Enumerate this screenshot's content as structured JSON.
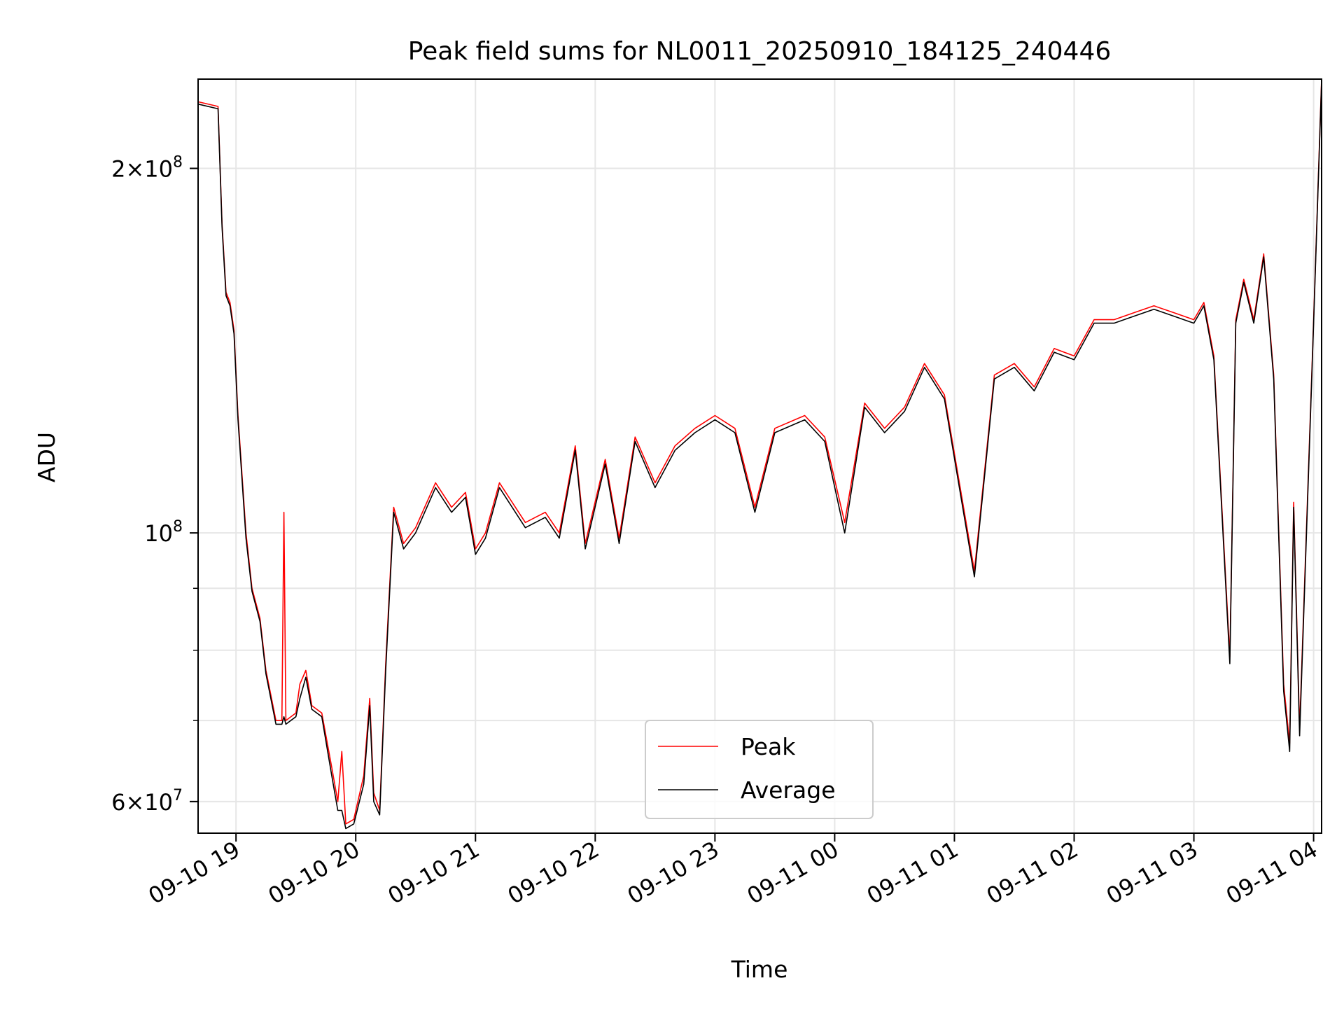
{
  "chart_data": {
    "type": "line",
    "title": "Peak field sums for NL0011_20250910_184125_240446",
    "xlabel": "Time",
    "ylabel": "ADU",
    "yscale": "log",
    "grid": true,
    "legend_position": "lower center",
    "xlim": [
      "2025-09-10 18:41",
      "2025-09-11 04:04"
    ],
    "ylim": [
      56500000,
      237000000
    ],
    "x_ticks": [
      "2025-09-10 19:00",
      "2025-09-10 20:00",
      "2025-09-10 21:00",
      "2025-09-10 22:00",
      "2025-09-10 23:00",
      "2025-09-11 00:00",
      "2025-09-11 01:00",
      "2025-09-11 02:00",
      "2025-09-11 03:00",
      "2025-09-11 04:00"
    ],
    "x_tick_labels": [
      "09-10 19",
      "09-10 20",
      "09-10 21",
      "09-10 22",
      "09-10 23",
      "09-11 00",
      "09-11 01",
      "09-11 02",
      "09-11 03",
      "09-11 04"
    ],
    "y_major_ticks": [
      60000000,
      100000000,
      200000000
    ],
    "y_tick_labels": [
      {
        "value": 60000000,
        "mantissa": "6",
        "exponent": "7"
      },
      {
        "value": 100000000,
        "mantissa": "",
        "exponent": "8"
      },
      {
        "value": 200000000,
        "mantissa": "2",
        "exponent": "8"
      }
    ],
    "y_minor_ticks": [
      70000000,
      80000000,
      90000000
    ],
    "series": [
      {
        "name": "Peak",
        "color": "#ff0000",
        "points": [
          [
            "2025-09-10 18:41",
            227000000.0
          ],
          [
            "2025-09-10 18:51",
            225000000.0
          ],
          [
            "2025-09-10 18:53",
            180000000.0
          ],
          [
            "2025-09-10 18:55",
            158000000.0
          ],
          [
            "2025-09-10 18:57",
            155000000.0
          ],
          [
            "2025-09-10 18:59",
            147000000.0
          ],
          [
            "2025-09-10 19:01",
            125000000.0
          ],
          [
            "2025-09-10 19:05",
            100000000.0
          ],
          [
            "2025-09-10 19:08",
            90000000.0
          ],
          [
            "2025-09-10 19:12",
            85000000.0
          ],
          [
            "2025-09-10 19:15",
            77000000.0
          ],
          [
            "2025-09-10 19:20",
            70000000.0
          ],
          [
            "2025-09-10 19:23",
            70000000.0
          ],
          [
            "2025-09-10 19:24",
            104000000.0
          ],
          [
            "2025-09-10 19:25",
            70000000.0
          ],
          [
            "2025-09-10 19:30",
            71000000.0
          ],
          [
            "2025-09-10 19:32",
            75000000.0
          ],
          [
            "2025-09-10 19:35",
            77000000.0
          ],
          [
            "2025-09-10 19:38",
            72000000.0
          ],
          [
            "2025-09-10 19:43",
            71000000.0
          ],
          [
            "2025-09-10 19:48",
            64000000.0
          ],
          [
            "2025-09-10 19:51",
            60000000.0
          ],
          [
            "2025-09-10 19:53",
            66000000.0
          ],
          [
            "2025-09-10 19:55",
            57500000.0
          ],
          [
            "2025-09-10 19:59",
            58000000.0
          ],
          [
            "2025-09-10 20:04",
            63000000.0
          ],
          [
            "2025-09-10 20:07",
            73000000.0
          ],
          [
            "2025-09-10 20:09",
            61000000.0
          ],
          [
            "2025-09-10 20:12",
            59000000.0
          ],
          [
            "2025-09-10 20:15",
            78000000.0
          ],
          [
            "2025-09-10 20:19",
            105000000.0
          ],
          [
            "2025-09-10 20:24",
            98000000.0
          ],
          [
            "2025-09-10 20:30",
            101000000.0
          ],
          [
            "2025-09-10 20:40",
            110000000.0
          ],
          [
            "2025-09-10 20:48",
            105000000.0
          ],
          [
            "2025-09-10 20:55",
            108000000.0
          ],
          [
            "2025-09-10 21:00",
            97000000.0
          ],
          [
            "2025-09-10 21:05",
            100000000.0
          ],
          [
            "2025-09-10 21:12",
            110000000.0
          ],
          [
            "2025-09-10 21:25",
            102000000.0
          ],
          [
            "2025-09-10 21:35",
            104000000.0
          ],
          [
            "2025-09-10 21:42",
            100000000.0
          ],
          [
            "2025-09-10 21:50",
            118000000.0
          ],
          [
            "2025-09-10 21:55",
            98000000.0
          ],
          [
            "2025-09-10 22:05",
            115000000.0
          ],
          [
            "2025-09-10 22:12",
            99000000.0
          ],
          [
            "2025-09-10 22:20",
            120000000.0
          ],
          [
            "2025-09-10 22:30",
            110000000.0
          ],
          [
            "2025-09-10 22:40",
            118000000.0
          ],
          [
            "2025-09-10 22:50",
            122000000.0
          ],
          [
            "2025-09-10 23:00",
            125000000.0
          ],
          [
            "2025-09-10 23:10",
            122000000.0
          ],
          [
            "2025-09-10 23:20",
            105000000.0
          ],
          [
            "2025-09-10 23:30",
            122000000.0
          ],
          [
            "2025-09-10 23:45",
            125000000.0
          ],
          [
            "2025-09-10 23:55",
            120000000.0
          ],
          [
            "2025-09-11 00:05",
            102000000.0
          ],
          [
            "2025-09-11 00:15",
            128000000.0
          ],
          [
            "2025-09-11 00:25",
            122000000.0
          ],
          [
            "2025-09-11 00:35",
            127000000.0
          ],
          [
            "2025-09-11 00:45",
            138000000.0
          ],
          [
            "2025-09-11 00:55",
            130000000.0
          ],
          [
            "2025-09-11 01:10",
            93000000.0
          ],
          [
            "2025-09-11 01:20",
            135000000.0
          ],
          [
            "2025-09-11 01:30",
            138000000.0
          ],
          [
            "2025-09-11 01:40",
            132000000.0
          ],
          [
            "2025-09-11 01:50",
            142000000.0
          ],
          [
            "2025-09-11 02:00",
            140000000.0
          ],
          [
            "2025-09-11 02:10",
            150000000.0
          ],
          [
            "2025-09-11 02:20",
            150000000.0
          ],
          [
            "2025-09-11 02:30",
            152000000.0
          ],
          [
            "2025-09-11 02:40",
            154000000.0
          ],
          [
            "2025-09-11 02:50",
            152000000.0
          ],
          [
            "2025-09-11 03:00",
            150000000.0
          ],
          [
            "2025-09-11 03:05",
            155000000.0
          ],
          [
            "2025-09-11 03:10",
            140000000.0
          ],
          [
            "2025-09-11 03:15",
            98000000.0
          ],
          [
            "2025-09-11 03:18",
            79000000.0
          ],
          [
            "2025-09-11 03:21",
            150000000.0
          ],
          [
            "2025-09-11 03:25",
            162000000.0
          ],
          [
            "2025-09-11 03:30",
            150000000.0
          ],
          [
            "2025-09-11 03:35",
            170000000.0
          ],
          [
            "2025-09-11 03:40",
            135000000.0
          ],
          [
            "2025-09-11 03:45",
            75000000.0
          ],
          [
            "2025-09-11 03:48",
            67000000.0
          ],
          [
            "2025-09-11 03:50",
            106000000.0
          ],
          [
            "2025-09-11 03:53",
            69000000.0
          ],
          [
            "2025-09-11 04:00",
            150000000.0
          ],
          [
            "2025-09-11 04:04",
            237000000.0
          ]
        ]
      },
      {
        "name": "Average",
        "color": "#000000",
        "points": [
          [
            "2025-09-10 18:41",
            226000000.0
          ],
          [
            "2025-09-10 18:51",
            224000000.0
          ],
          [
            "2025-09-10 18:53",
            179000000.0
          ],
          [
            "2025-09-10 18:55",
            157000000.0
          ],
          [
            "2025-09-10 18:57",
            154000000.0
          ],
          [
            "2025-09-10 18:59",
            146000000.0
          ],
          [
            "2025-09-10 19:01",
            124000000.0
          ],
          [
            "2025-09-10 19:05",
            99000000.0
          ],
          [
            "2025-09-10 19:08",
            89500000.0
          ],
          [
            "2025-09-10 19:12",
            84500000.0
          ],
          [
            "2025-09-10 19:15",
            76500000.0
          ],
          [
            "2025-09-10 19:20",
            69500000.0
          ],
          [
            "2025-09-10 19:23",
            69500000.0
          ],
          [
            "2025-09-10 19:24",
            70500000.0
          ],
          [
            "2025-09-10 19:25",
            69500000.0
          ],
          [
            "2025-09-10 19:30",
            70500000.0
          ],
          [
            "2025-09-10 19:32",
            73000000.0
          ],
          [
            "2025-09-10 19:35",
            76000000.0
          ],
          [
            "2025-09-10 19:38",
            71500000.0
          ],
          [
            "2025-09-10 19:43",
            70500000.0
          ],
          [
            "2025-09-10 19:48",
            63000000.0
          ],
          [
            "2025-09-10 19:51",
            59000000.0
          ],
          [
            "2025-09-10 19:53",
            59000000.0
          ],
          [
            "2025-09-10 19:55",
            57000000.0
          ],
          [
            "2025-09-10 19:59",
            57500000.0
          ],
          [
            "2025-09-10 20:04",
            62000000.0
          ],
          [
            "2025-09-10 20:07",
            72000000.0
          ],
          [
            "2025-09-10 20:09",
            60000000.0
          ],
          [
            "2025-09-10 20:12",
            58500000.0
          ],
          [
            "2025-09-10 20:15",
            77000000.0
          ],
          [
            "2025-09-10 20:19",
            104000000.0
          ],
          [
            "2025-09-10 20:24",
            97000000.0
          ],
          [
            "2025-09-10 20:30",
            100000000.0
          ],
          [
            "2025-09-10 20:40",
            109000000.0
          ],
          [
            "2025-09-10 20:48",
            104000000.0
          ],
          [
            "2025-09-10 20:55",
            107000000.0
          ],
          [
            "2025-09-10 21:00",
            96000000.0
          ],
          [
            "2025-09-10 21:05",
            99000000.0
          ],
          [
            "2025-09-10 21:12",
            109000000.0
          ],
          [
            "2025-09-10 21:25",
            101000000.0
          ],
          [
            "2025-09-10 21:35",
            103000000.0
          ],
          [
            "2025-09-10 21:42",
            99000000.0
          ],
          [
            "2025-09-10 21:50",
            117000000.0
          ],
          [
            "2025-09-10 21:55",
            97000000.0
          ],
          [
            "2025-09-10 22:05",
            114000000.0
          ],
          [
            "2025-09-10 22:12",
            98000000.0
          ],
          [
            "2025-09-10 22:20",
            119000000.0
          ],
          [
            "2025-09-10 22:30",
            109000000.0
          ],
          [
            "2025-09-10 22:40",
            117000000.0
          ],
          [
            "2025-09-10 22:50",
            121000000.0
          ],
          [
            "2025-09-10 23:00",
            124000000.0
          ],
          [
            "2025-09-10 23:10",
            121000000.0
          ],
          [
            "2025-09-10 23:20",
            104000000.0
          ],
          [
            "2025-09-10 23:30",
            121000000.0
          ],
          [
            "2025-09-10 23:45",
            124000000.0
          ],
          [
            "2025-09-10 23:55",
            119000000.0
          ],
          [
            "2025-09-11 00:05",
            100000000.0
          ],
          [
            "2025-09-11 00:15",
            127000000.0
          ],
          [
            "2025-09-11 00:25",
            121000000.0
          ],
          [
            "2025-09-11 00:35",
            126000000.0
          ],
          [
            "2025-09-11 00:45",
            137000000.0
          ],
          [
            "2025-09-11 00:55",
            129000000.0
          ],
          [
            "2025-09-11 01:10",
            92000000.0
          ],
          [
            "2025-09-11 01:20",
            134000000.0
          ],
          [
            "2025-09-11 01:30",
            137000000.0
          ],
          [
            "2025-09-11 01:40",
            131000000.0
          ],
          [
            "2025-09-11 01:50",
            141000000.0
          ],
          [
            "2025-09-11 02:00",
            139000000.0
          ],
          [
            "2025-09-11 02:10",
            149000000.0
          ],
          [
            "2025-09-11 02:20",
            149000000.0
          ],
          [
            "2025-09-11 02:30",
            151000000.0
          ],
          [
            "2025-09-11 02:40",
            153000000.0
          ],
          [
            "2025-09-11 02:50",
            151000000.0
          ],
          [
            "2025-09-11 03:00",
            149000000.0
          ],
          [
            "2025-09-11 03:05",
            154000000.0
          ],
          [
            "2025-09-11 03:10",
            139000000.0
          ],
          [
            "2025-09-11 03:15",
            97000000.0
          ],
          [
            "2025-09-11 03:18",
            78000000.0
          ],
          [
            "2025-09-11 03:21",
            149000000.0
          ],
          [
            "2025-09-11 03:25",
            161000000.0
          ],
          [
            "2025-09-11 03:30",
            149000000.0
          ],
          [
            "2025-09-11 03:35",
            169000000.0
          ],
          [
            "2025-09-11 03:40",
            134000000.0
          ],
          [
            "2025-09-11 03:45",
            74000000.0
          ],
          [
            "2025-09-11 03:48",
            66000000.0
          ],
          [
            "2025-09-11 03:50",
            105000000.0
          ],
          [
            "2025-09-11 03:53",
            68000000.0
          ],
          [
            "2025-09-11 04:00",
            149000000.0
          ],
          [
            "2025-09-11 04:04",
            236000000.0
          ]
        ]
      }
    ]
  }
}
